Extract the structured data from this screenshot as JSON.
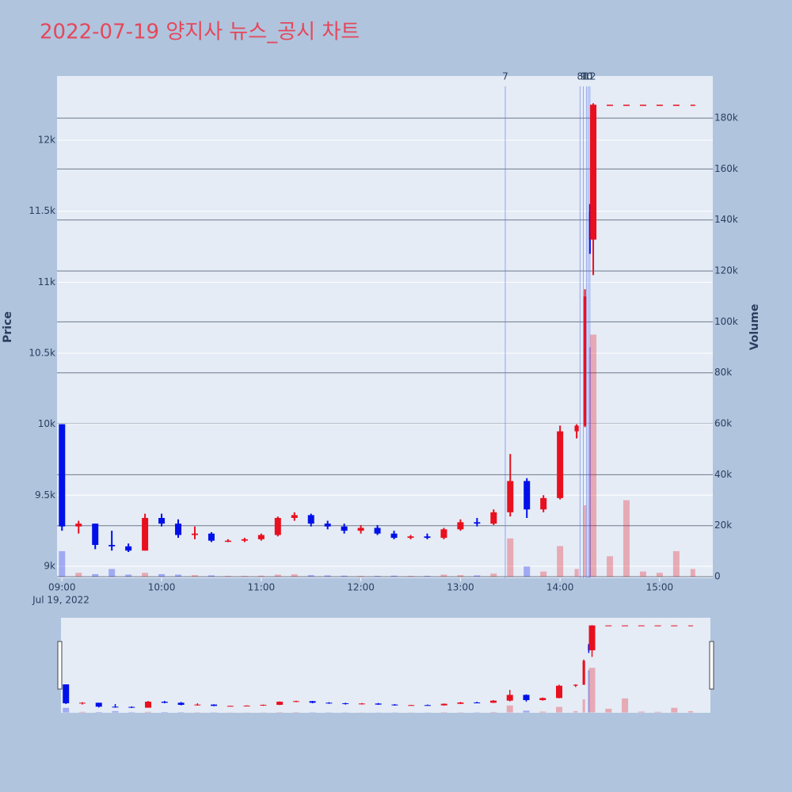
{
  "chart_data": {
    "type": "candlestick",
    "title": "2022-07-19 양지사 뉴스_공시 차트",
    "y_label": "Price",
    "y2_label": "Volume",
    "x_date_label": "Jul 19, 2022",
    "up_color": "#e8101e",
    "down_color": "#0010e8",
    "x": [
      "2022-07-19 09:00",
      "2022-07-19 09:10",
      "2022-07-19 09:20",
      "2022-07-19 09:30",
      "2022-07-19 09:40",
      "2022-07-19 09:50",
      "2022-07-19 10:00",
      "2022-07-19 10:10",
      "2022-07-19 10:20",
      "2022-07-19 10:30",
      "2022-07-19 10:40",
      "2022-07-19 10:50",
      "2022-07-19 11:00",
      "2022-07-19 11:10",
      "2022-07-19 11:20",
      "2022-07-19 11:30",
      "2022-07-19 11:40",
      "2022-07-19 11:50",
      "2022-07-19 12:00",
      "2022-07-19 12:10",
      "2022-07-19 12:20",
      "2022-07-19 12:30",
      "2022-07-19 12:40",
      "2022-07-19 12:50",
      "2022-07-19 13:00",
      "2022-07-19 13:10",
      "2022-07-19 13:20",
      "2022-07-19 13:30",
      "2022-07-19 13:40",
      "2022-07-19 13:50",
      "2022-07-19 14:00",
      "2022-07-19 14:10",
      "2022-07-19 14:15",
      "2022-07-19 14:18",
      "2022-07-19 14:20",
      "2022-07-19 14:30",
      "2022-07-19 14:40",
      "2022-07-19 14:50",
      "2022-07-19 15:00",
      "2022-07-19 15:10",
      "2022-07-19 15:20"
    ],
    "open": [
      10000,
      9280,
      9300,
      9150,
      9140,
      9110,
      9340,
      9300,
      9220,
      9230,
      9180,
      9180,
      9190,
      9220,
      9340,
      9360,
      9300,
      9280,
      9250,
      9270,
      9230,
      9200,
      9210,
      9200,
      9260,
      9310,
      9300,
      9380,
      9600,
      9400,
      9480,
      9950,
      9990,
      11500,
      11300,
      12250,
      12250,
      12250,
      12250,
      12250,
      12250
    ],
    "high": [
      10000,
      9320,
      9300,
      9250,
      9160,
      9370,
      9370,
      9330,
      9280,
      9240,
      9190,
      9200,
      9230,
      9350,
      9380,
      9370,
      9320,
      9300,
      9290,
      9290,
      9250,
      9220,
      9230,
      9270,
      9330,
      9340,
      9400,
      9790,
      9620,
      9500,
      9990,
      10000,
      10950,
      11550,
      12260,
      12250,
      12250,
      12250,
      12250,
      12250,
      12250
    ],
    "low": [
      9250,
      9230,
      9120,
      9110,
      9100,
      9110,
      9280,
      9200,
      9190,
      9170,
      9170,
      9170,
      9180,
      9210,
      9320,
      9280,
      9260,
      9230,
      9230,
      9220,
      9190,
      9190,
      9190,
      9190,
      9250,
      9280,
      9290,
      9350,
      9340,
      9380,
      9470,
      9900,
      9980,
      11200,
      11050,
      12250,
      12250,
      12250,
      12250,
      12250,
      12250
    ],
    "close": [
      9280,
      9300,
      9150,
      9140,
      9110,
      9340,
      9300,
      9220,
      9230,
      9180,
      9180,
      9190,
      9220,
      9340,
      9360,
      9300,
      9280,
      9250,
      9270,
      9230,
      9200,
      9210,
      9200,
      9260,
      9310,
      9300,
      9380,
      9600,
      9400,
      9480,
      9950,
      9990,
      10900,
      11300,
      12250,
      12250,
      12250,
      12250,
      12250,
      12250,
      12250
    ],
    "volume": [
      10000,
      1500,
      1000,
      3000,
      800,
      1500,
      1000,
      800,
      600,
      500,
      300,
      300,
      400,
      800,
      900,
      600,
      500,
      400,
      300,
      300,
      400,
      300,
      300,
      800,
      600,
      500,
      1200,
      15000,
      4000,
      2000,
      12000,
      3000,
      28000,
      90000,
      95000,
      8000,
      30000,
      2000,
      1500,
      10000,
      3000
    ],
    "markers": [
      {
        "x": "2022-07-19 13:27",
        "label": "7"
      },
      {
        "x": "2022-07-19 14:12",
        "label": "8"
      },
      {
        "x": "2022-07-19 14:14",
        "label": "9"
      },
      {
        "x": "2022-07-19 14:16",
        "label": "10"
      },
      {
        "x": "2022-07-19 14:17",
        "label": "11"
      },
      {
        "x": "2022-07-19 14:18",
        "label": "12"
      }
    ],
    "xlim": [
      "2022-07-19 08:57",
      "2022-07-19 15:32"
    ],
    "xticks": [
      {
        "value": "2022-07-19 09:00",
        "label": "09:00"
      },
      {
        "value": "2022-07-19 10:00",
        "label": "10:00"
      },
      {
        "value": "2022-07-19 11:00",
        "label": "11:00"
      },
      {
        "value": "2022-07-19 12:00",
        "label": "12:00"
      },
      {
        "value": "2022-07-19 13:00",
        "label": "13:00"
      },
      {
        "value": "2022-07-19 14:00",
        "label": "14:00"
      },
      {
        "value": "2022-07-19 15:00",
        "label": "15:00"
      }
    ],
    "ylim": [
      8916,
      12452
    ],
    "yticks": [
      {
        "value": 9000,
        "label": "9k"
      },
      {
        "value": 9500,
        "label": "9.5k"
      },
      {
        "value": 10000,
        "label": "10k"
      },
      {
        "value": 10500,
        "label": "10.5k"
      },
      {
        "value": 11000,
        "label": "11k"
      },
      {
        "value": 11500,
        "label": "11.5k"
      },
      {
        "value": 12000,
        "label": "12k"
      }
    ],
    "y2lim": [
      -600,
      196500
    ],
    "y2ticks": [
      0,
      {
        "value": 20000,
        "label": "20k"
      },
      {
        "value": 40000,
        "label": "40k"
      },
      {
        "value": 60000,
        "label": "60k"
      },
      {
        "value": 80000,
        "label": "80k"
      },
      {
        "value": 100000,
        "label": "100k"
      },
      {
        "value": 120000,
        "label": "120k"
      },
      {
        "value": 140000,
        "label": "140k"
      },
      {
        "value": 160000,
        "label": "160k"
      },
      {
        "value": 180000,
        "label": "180k"
      }
    ],
    "grid": true
  }
}
